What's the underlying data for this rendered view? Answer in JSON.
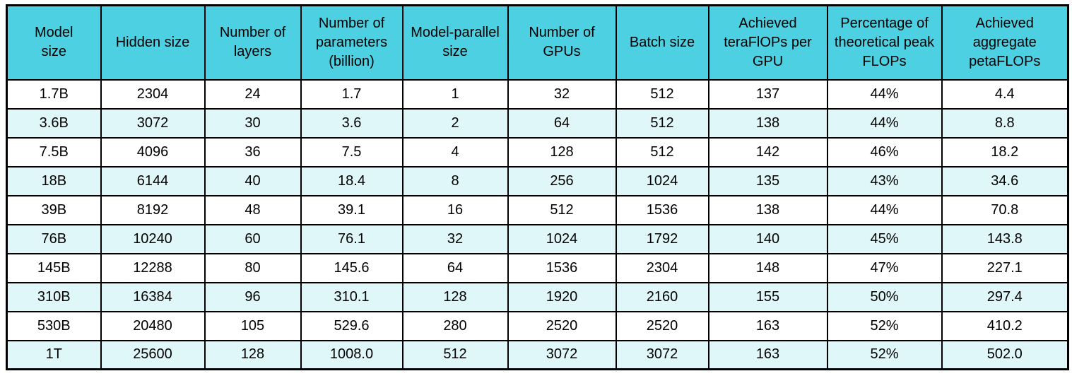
{
  "colors": {
    "header_bg": "#4DD0E1",
    "row_alt_bg": "#E0F7FA",
    "row_bg": "#FFFFFF",
    "border": "#000000",
    "text": "#000000",
    "page_bg": "#FFFFFF"
  },
  "chart_data": {
    "type": "table",
    "legend_position": "none",
    "grid": true,
    "columns": [
      "Model size",
      "Hidden size",
      "Number of layers",
      "Number of parameters (billion)",
      "Model-parallel size",
      "Number of GPUs",
      "Batch size",
      "Achieved teraFlOPs per GPU",
      "Percentage of theoretical peak FLOPs",
      "Achieved aggregate petaFLOPs"
    ],
    "rows": [
      [
        "1.7B",
        "2304",
        "24",
        "1.7",
        "1",
        "32",
        "512",
        "137",
        "44%",
        "4.4"
      ],
      [
        "3.6B",
        "3072",
        "30",
        "3.6",
        "2",
        "64",
        "512",
        "138",
        "44%",
        "8.8"
      ],
      [
        "7.5B",
        "4096",
        "36",
        "7.5",
        "4",
        "128",
        "512",
        "142",
        "46%",
        "18.2"
      ],
      [
        "18B",
        "6144",
        "40",
        "18.4",
        "8",
        "256",
        "1024",
        "135",
        "43%",
        "34.6"
      ],
      [
        "39B",
        "8192",
        "48",
        "39.1",
        "16",
        "512",
        "1536",
        "138",
        "44%",
        "70.8"
      ],
      [
        "76B",
        "10240",
        "60",
        "76.1",
        "32",
        "1024",
        "1792",
        "140",
        "45%",
        "143.8"
      ],
      [
        "145B",
        "12288",
        "80",
        "145.6",
        "64",
        "1536",
        "2304",
        "148",
        "47%",
        "227.1"
      ],
      [
        "310B",
        "16384",
        "96",
        "310.1",
        "128",
        "1920",
        "2160",
        "155",
        "50%",
        "297.4"
      ],
      [
        "530B",
        "20480",
        "105",
        "529.6",
        "280",
        "2520",
        "2520",
        "163",
        "52%",
        "410.2"
      ],
      [
        "1T",
        "25600",
        "128",
        "1008.0",
        "512",
        "3072",
        "3072",
        "163",
        "52%",
        "502.0"
      ]
    ]
  }
}
